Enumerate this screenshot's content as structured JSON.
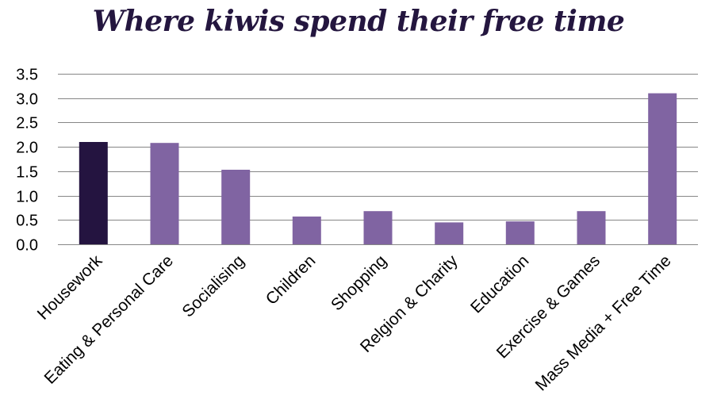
{
  "chart_data": {
    "type": "bar",
    "title": "Where kiwis spend their free time",
    "xlabel": "",
    "ylabel": "",
    "categories": [
      "Housework",
      "Eating & Personal Care",
      "Socialising",
      "Children",
      "Shopping",
      "Relgion & Charity",
      "Education",
      "Exercise & Games",
      "Mass Media + Free Time"
    ],
    "values": [
      2.1,
      2.08,
      1.53,
      0.57,
      0.68,
      0.45,
      0.47,
      0.68,
      3.1
    ],
    "ylim": [
      0,
      3.5
    ],
    "yticks": [
      "0.0",
      "0.5",
      "1.0",
      "1.5",
      "2.0",
      "2.5",
      "3.0",
      "3.5"
    ],
    "grid": true,
    "legend": "none",
    "colors": {
      "highlight": "#241440",
      "bar": "#8064a2",
      "grid": "#868686",
      "title": "#24163f"
    },
    "highlight_index": 0
  }
}
